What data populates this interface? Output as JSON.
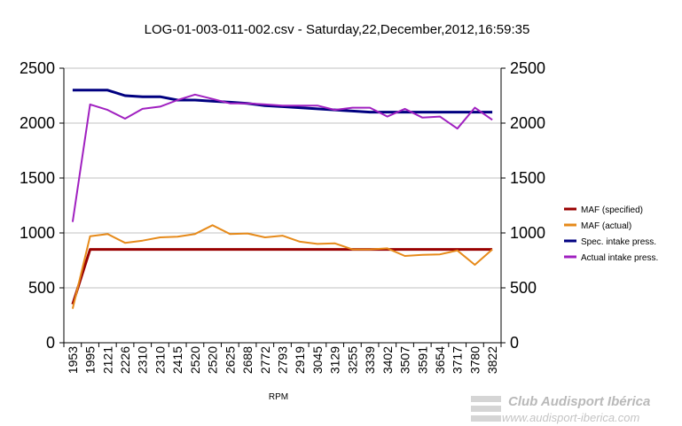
{
  "chart_data": {
    "type": "line",
    "title": "LOG-01-003-011-002.csv - Saturday,22,December,2012,16:59:35",
    "xlabel": "RPM",
    "categories": [
      "1953",
      "1995",
      "2121",
      "2226",
      "2310",
      "2310",
      "2415",
      "2520",
      "2520",
      "2625",
      "2688",
      "2772",
      "2793",
      "2919",
      "3045",
      "3129",
      "3255",
      "3339",
      "3402",
      "3507",
      "3591",
      "3654",
      "3717",
      "3780",
      "3822"
    ],
    "ylim": [
      0,
      2500
    ],
    "yticks": [
      0,
      500,
      1000,
      1500,
      2000,
      2500
    ],
    "legend_position": "right",
    "series": [
      {
        "name": "MAF (specified)",
        "color": "#990000",
        "width": 3,
        "values": [
          350,
          850,
          850,
          850,
          850,
          850,
          850,
          850,
          850,
          850,
          850,
          850,
          850,
          850,
          850,
          850,
          850,
          850,
          850,
          850,
          850,
          850,
          850,
          850,
          850
        ]
      },
      {
        "name": "MAF (actual)",
        "color": "#e68a1a",
        "width": 2,
        "values": [
          310,
          970,
          990,
          910,
          930,
          960,
          965,
          990,
          1070,
          990,
          995,
          960,
          975,
          920,
          900,
          905,
          850,
          850,
          860,
          790,
          800,
          805,
          840,
          710,
          850
        ]
      },
      {
        "name": "Spec. intake press.",
        "color": "#000080",
        "width": 3,
        "values": [
          2300,
          2300,
          2300,
          2250,
          2240,
          2240,
          2210,
          2210,
          2200,
          2190,
          2180,
          2160,
          2150,
          2140,
          2130,
          2120,
          2110,
          2100,
          2100,
          2100,
          2100,
          2100,
          2100,
          2100,
          2100
        ]
      },
      {
        "name": "Actual intake press.",
        "color": "#a020c0",
        "width": 2,
        "values": [
          1100,
          2170,
          2120,
          2040,
          2130,
          2150,
          2210,
          2260,
          2220,
          2180,
          2180,
          2170,
          2160,
          2160,
          2160,
          2120,
          2140,
          2140,
          2060,
          2130,
          2050,
          2060,
          1950,
          2140,
          2030
        ]
      }
    ]
  },
  "watermark": {
    "brand": "Club Audisport Ibérica",
    "url": "www.audisport-iberica.com"
  }
}
